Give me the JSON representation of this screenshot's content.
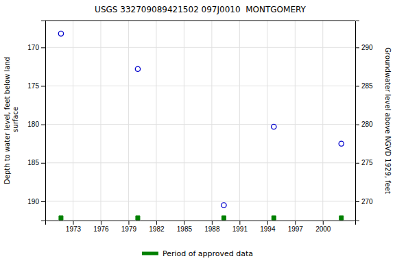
{
  "chart_data": {
    "type": "scatter",
    "title": "USGS 332709089421502 097J0010  MONTGOMERY",
    "ylabel": "Depth to water level, feet below land\n surface",
    "y2label": "Groundwater level above NGVD 1929, feet",
    "x": [
      1971.7,
      1980.0,
      1989.3,
      1994.7,
      2002.0
    ],
    "series": [
      {
        "values": [
          168.2,
          172.8,
          190.5,
          180.3,
          182.5
        ],
        "color": "#0000cc",
        "marker": "circle"
      },
      {
        "name": "Period of approved data",
        "color": "#008000",
        "marker": "square",
        "x": [
          1971.7,
          1980.0,
          1989.3,
          1994.7,
          2002.0
        ]
      }
    ],
    "xlim": [
      1970.0,
      2003.5
    ],
    "xticks": [
      1973,
      1976,
      1979,
      1982,
      1985,
      1988,
      1991,
      1994,
      1997,
      2000
    ],
    "ylim": [
      192.5,
      166.5
    ],
    "yticks": [
      170,
      175,
      180,
      185,
      190
    ],
    "y2lim": [
      267.5,
      293.5
    ],
    "y2ticks": [
      290,
      285,
      280,
      275,
      270
    ],
    "grid": true,
    "legend": "bottom"
  }
}
